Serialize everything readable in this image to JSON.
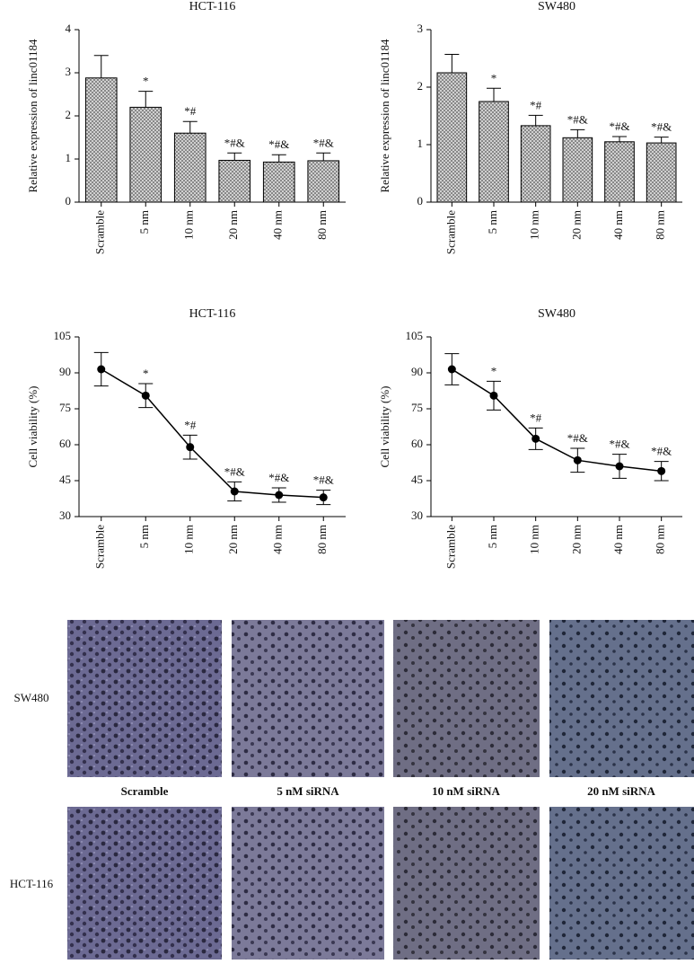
{
  "chart_data": [
    {
      "type": "bar",
      "title": "HCT-116",
      "ylabel": "Relative expression of linc01184",
      "categories": [
        "Scramble",
        "5 nm",
        "10 nm",
        "20 nm",
        "40 nm",
        "80 nm"
      ],
      "values": [
        2.88,
        2.2,
        1.6,
        0.97,
        0.93,
        0.96
      ],
      "errors": [
        0.52,
        0.37,
        0.27,
        0.17,
        0.17,
        0.18
      ],
      "annotations": [
        null,
        "*",
        "*#",
        "*#&",
        "*#&",
        "*#&"
      ],
      "color": "#c8c8c8",
      "ylim": [
        0,
        4
      ],
      "yticks": [
        0,
        1,
        2,
        3,
        4
      ]
    },
    {
      "type": "bar",
      "title": "SW480",
      "ylabel": "Relative expression of linc01184",
      "categories": [
        "Scramble",
        "5 nm",
        "10 nm",
        "20 nm",
        "40 nm",
        "80 nm"
      ],
      "values": [
        2.25,
        1.75,
        1.33,
        1.12,
        1.05,
        1.03
      ],
      "errors": [
        0.32,
        0.23,
        0.18,
        0.14,
        0.09,
        0.1
      ],
      "annotations": [
        null,
        "*",
        "*#",
        "*#&",
        "*#&",
        "*#&"
      ],
      "color": "#c8c8c8",
      "ylim": [
        0,
        3
      ],
      "yticks": [
        0,
        1,
        2,
        3
      ]
    },
    {
      "type": "line",
      "title": "HCT-116",
      "ylabel": "Cell viability (%)",
      "categories": [
        "Scramble",
        "5 nm",
        "10 nm",
        "20 nm",
        "40 nm",
        "80 nm"
      ],
      "values": [
        91.5,
        80.5,
        59,
        40.5,
        39,
        38
      ],
      "errors": [
        7,
        5,
        5,
        4,
        3,
        3
      ],
      "annotations": [
        null,
        "*",
        "*#",
        "*#&",
        "*#&",
        "*#&"
      ],
      "color": "#000000",
      "ylim": [
        30,
        105
      ],
      "yticks": [
        30,
        45,
        60,
        75,
        90,
        105
      ]
    },
    {
      "type": "line",
      "title": "SW480",
      "ylabel": "Cell viability (%)",
      "categories": [
        "Scramble",
        "5 nm",
        "10 nm",
        "20 nm",
        "40 nm",
        "80 nm"
      ],
      "values": [
        91.5,
        80.5,
        62.5,
        53.5,
        51,
        49
      ],
      "errors": [
        6.5,
        6,
        4.5,
        5,
        5,
        4
      ],
      "annotations": [
        null,
        "*",
        "*#",
        "*#&",
        "*#&",
        "*#&"
      ],
      "color": "#000000",
      "ylim": [
        30,
        105
      ],
      "yticks": [
        30,
        45,
        60,
        75,
        90,
        105
      ]
    }
  ],
  "image_panel": {
    "row_labels": [
      "SW480",
      "HCT-116"
    ],
    "column_labels": [
      "Scramble",
      "5 nM siRNA",
      "10 nM siRNA",
      "20 nM siRNA"
    ]
  }
}
